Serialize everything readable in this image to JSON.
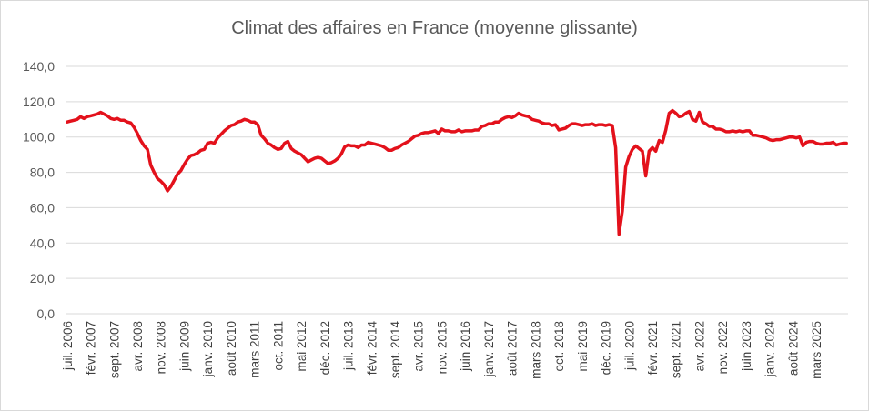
{
  "chart_data": {
    "type": "line",
    "title": "Climat des affaires en France (moyenne glissante)",
    "xlabel": "",
    "ylabel": "",
    "ylim": [
      0,
      140
    ],
    "yticks": [
      "0,0",
      "20,0",
      "40,0",
      "60,0",
      "80,0",
      "100,0",
      "120,0",
      "140,0"
    ],
    "grid": true,
    "legend": "none",
    "color": "#e3111b",
    "x_tick_labels": [
      "juil. 2006",
      "févr. 2007",
      "sept. 2007",
      "avr. 2008",
      "nov. 2008",
      "juin 2009",
      "janv. 2010",
      "août 2010",
      "mars 2011",
      "oct. 2011",
      "mai 2012",
      "déc. 2012",
      "juil. 2013",
      "févr. 2014",
      "sept. 2014",
      "avr. 2015",
      "nov. 2015",
      "juin 2016",
      "janv. 2017",
      "août 2017",
      "mars 2018",
      "oct. 2018",
      "mai 2019",
      "déc. 2019",
      "juil. 2020",
      "févr. 2021",
      "sept. 2021",
      "avr. 2022",
      "nov. 2022",
      "juin 2023",
      "janv. 2024",
      "août 2024",
      "mars 2025"
    ],
    "series": [
      {
        "x_start": "juil. 2006",
        "frequency": "monthly",
        "values": [
          108.5,
          109,
          109.5,
          110,
          111.5,
          110.5,
          111.5,
          112,
          112.5,
          113,
          114,
          113,
          112,
          110.5,
          110,
          110.5,
          109.5,
          109.5,
          108.5,
          108,
          105.5,
          102,
          98,
          95,
          93,
          84,
          80,
          76.5,
          75,
          73,
          69.5,
          72,
          75.5,
          79,
          81,
          84.5,
          87.5,
          89.5,
          90,
          91,
          92.5,
          93,
          96.5,
          97,
          96.5,
          99.5,
          101.5,
          103.5,
          105,
          106.5,
          107,
          108.5,
          109,
          110,
          109.5,
          108.5,
          108.5,
          107,
          101,
          99,
          96.5,
          95.5,
          94,
          93,
          93.5,
          96.5,
          97.5,
          93.5,
          92,
          91,
          90,
          88,
          86,
          87,
          88,
          88.5,
          88,
          86.5,
          85,
          85.5,
          86.5,
          88,
          90.5,
          94.5,
          95.5,
          95,
          95,
          94,
          95.5,
          95.5,
          97,
          96.5,
          96,
          95.5,
          95,
          94,
          92.5,
          92.5,
          93.5,
          94,
          95.5,
          96.5,
          97.5,
          99,
          100.5,
          101,
          102,
          102.5,
          102.5,
          103,
          103.5,
          102,
          104.5,
          103.5,
          103.5,
          103,
          103,
          104,
          103,
          103.5,
          103.5,
          103.5,
          104,
          104,
          106,
          106.5,
          107.5,
          107.5,
          108.5,
          108.5,
          110,
          111,
          111.5,
          111,
          112,
          113.5,
          112.5,
          112,
          111.5,
          110,
          109.5,
          109,
          108,
          107.5,
          107.5,
          106.5,
          107,
          104,
          104.5,
          105,
          106.5,
          107.5,
          107.5,
          107,
          106.5,
          107,
          107,
          107.5,
          106.5,
          107,
          107,
          106.5,
          107,
          106.5,
          94,
          45,
          58,
          83,
          89,
          93,
          95,
          93.5,
          92,
          78,
          92,
          94,
          92,
          98,
          97,
          104,
          113.5,
          115,
          113.5,
          111.5,
          112,
          113.5,
          114.5,
          110,
          109,
          114,
          108.5,
          107.5,
          106,
          106,
          104.5,
          104.5,
          104,
          103,
          103,
          103.5,
          103,
          103.5,
          103,
          103.5,
          103.5,
          101,
          101,
          100.5,
          100,
          99.5,
          98.5,
          98,
          98.5,
          98.5,
          99,
          99.5,
          100,
          100,
          99.5,
          100,
          95,
          97,
          97.5,
          97.5,
          96.5,
          96,
          96,
          96.5,
          96.5,
          97,
          95.5,
          96,
          96.5,
          96.5
        ]
      }
    ]
  }
}
